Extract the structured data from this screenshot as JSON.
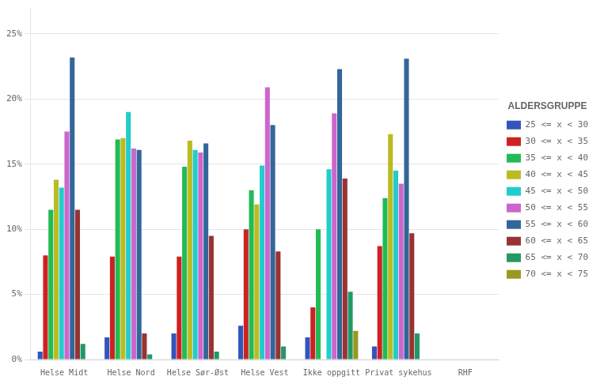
{
  "chart_data": {
    "type": "bar",
    "categories": [
      "Helse Midt",
      "Helse Nord",
      "Helse Sør-Øst",
      "Helse Vest",
      "Ikke oppgitt",
      "Privat sykehus",
      "RHF"
    ],
    "series": [
      {
        "name": "25 <= x < 30",
        "color": "#3355bb",
        "values": [
          0.6,
          1.7,
          2.0,
          2.6,
          1.7,
          1.0,
          0.0
        ]
      },
      {
        "name": "30 <= x < 35",
        "color": "#cc2222",
        "values": [
          8.0,
          7.9,
          7.9,
          10.0,
          4.0,
          8.7,
          0.0
        ]
      },
      {
        "name": "35 <= x < 40",
        "color": "#22bb55",
        "values": [
          11.5,
          16.9,
          14.8,
          13.0,
          10.0,
          12.4,
          0.0
        ]
      },
      {
        "name": "40 <= x < 45",
        "color": "#bbbb22",
        "values": [
          13.8,
          17.0,
          16.8,
          11.9,
          0.0,
          17.3,
          0.0
        ]
      },
      {
        "name": "45 <= x < 50",
        "color": "#22cccc",
        "values": [
          13.2,
          19.0,
          16.1,
          14.9,
          14.6,
          14.5,
          0.0
        ]
      },
      {
        "name": "50 <= x < 55",
        "color": "#cc66cc",
        "values": [
          17.5,
          16.2,
          15.9,
          20.9,
          18.9,
          13.5,
          0.0
        ]
      },
      {
        "name": "55 <= x < 60",
        "color": "#336699",
        "values": [
          23.2,
          16.1,
          16.6,
          18.0,
          22.3,
          23.1,
          0.0
        ]
      },
      {
        "name": "60 <= x < 65",
        "color": "#993333",
        "values": [
          11.5,
          2.0,
          9.5,
          8.3,
          13.9,
          9.7,
          0.0
        ]
      },
      {
        "name": "65 <= x < 70",
        "color": "#229966",
        "values": [
          1.2,
          0.4,
          0.6,
          1.0,
          5.2,
          2.0,
          0.0
        ]
      },
      {
        "name": "70 <= x < 75",
        "color": "#999922",
        "values": [
          0.0,
          0.0,
          0.0,
          0.0,
          2.2,
          0.0,
          0.0
        ]
      }
    ],
    "legend_title": "ALDERSGRUPPE",
    "ylim": [
      0,
      27
    ],
    "yticks": [
      {
        "value": 0,
        "label": "0%"
      },
      {
        "value": 5,
        "label": "5%"
      },
      {
        "value": 10,
        "label": "10%"
      },
      {
        "value": 15,
        "label": "15%"
      },
      {
        "value": 20,
        "label": "20%"
      },
      {
        "value": 25,
        "label": "25%"
      }
    ],
    "grid": true,
    "legend": "right"
  }
}
